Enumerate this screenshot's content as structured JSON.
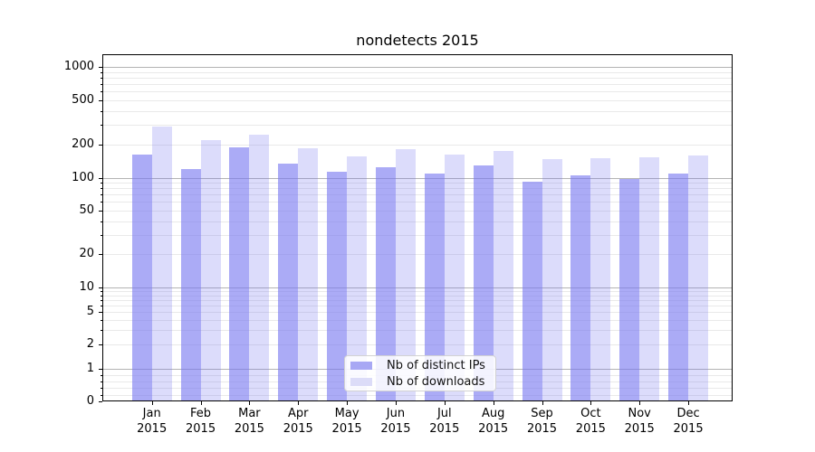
{
  "chart_data": {
    "type": "bar",
    "title": "nondetects 2015",
    "categories": [
      "Jan",
      "Feb",
      "Mar",
      "Apr",
      "May",
      "Jun",
      "Jul",
      "Aug",
      "Sep",
      "Oct",
      "Nov",
      "Dec"
    ],
    "category_year": "2015",
    "series": [
      {
        "name": "Nb of distinct IPs",
        "values": [
          160,
          119,
          186,
          133,
          113,
          123,
          108,
          130,
          92,
          104,
          97,
          108
        ],
        "color": "rgba(120,120,240,0.62)",
        "swatch_color": "#a8a8f4"
      },
      {
        "name": "Nb of downloads",
        "values": [
          290,
          218,
          245,
          185,
          157,
          181,
          160,
          175,
          147,
          150,
          154,
          158
        ],
        "color": "rgba(120,120,240,0.26)",
        "swatch_color": "#dcdcf8"
      }
    ],
    "yscale": "symlog",
    "ylim": [
      0,
      1000
    ],
    "y_ticks_labeled": [
      0,
      1,
      2,
      5,
      10,
      20,
      50,
      100,
      200,
      500,
      1000
    ],
    "y_major_gridlines": [
      1,
      10,
      100,
      1000
    ],
    "y_minor_gridlines": [
      0.2,
      0.4,
      0.6,
      0.8,
      2,
      3,
      4,
      5,
      6,
      7,
      8,
      9,
      20,
      30,
      40,
      50,
      60,
      70,
      80,
      90,
      200,
      300,
      400,
      500,
      600,
      700,
      800,
      900
    ],
    "grid": true,
    "legend_position": "lower center",
    "colors": {
      "major_grid": "#b3b3b3",
      "minor_grid": "#e9e9e9",
      "spine": "#000000",
      "text": "#000000",
      "bar_dark": "#a8a8f4",
      "bar_light": "#dcdcf8"
    }
  }
}
